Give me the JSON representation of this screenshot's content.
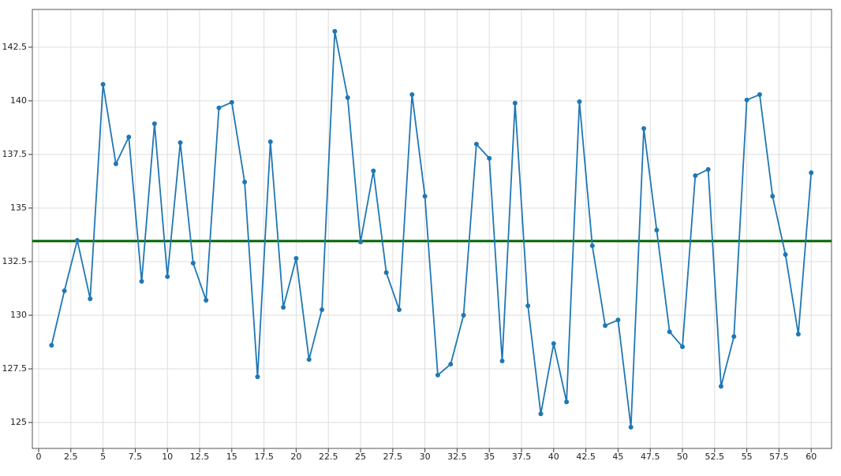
{
  "chart_data": {
    "type": "line",
    "x": [
      1,
      2,
      3,
      4,
      5,
      6,
      7,
      8,
      9,
      10,
      11,
      12,
      13,
      14,
      15,
      16,
      17,
      18,
      19,
      20,
      21,
      22,
      23,
      24,
      25,
      26,
      27,
      28,
      29,
      30,
      31,
      32,
      33,
      34,
      35,
      36,
      37,
      38,
      39,
      40,
      41,
      42,
      43,
      44,
      45,
      46,
      47,
      48,
      49,
      50,
      51,
      52,
      53,
      54,
      55,
      56,
      57,
      58,
      59,
      60
    ],
    "values": [
      128.6,
      131.14,
      133.49,
      130.77,
      140.77,
      137.06,
      138.31,
      131.58,
      138.93,
      131.8,
      138.05,
      132.43,
      130.7,
      139.67,
      139.93,
      136.21,
      127.13,
      138.09,
      130.37,
      132.65,
      127.94,
      130.26,
      143.24,
      140.15,
      133.42,
      136.73,
      131.99,
      130.26,
      140.29,
      135.55,
      127.21,
      127.72,
      130.0,
      137.98,
      137.32,
      127.87,
      139.89,
      130.44,
      125.4,
      128.68,
      125.96,
      139.96,
      133.24,
      129.52,
      129.78,
      124.78,
      138.71,
      133.97,
      129.23,
      128.53,
      136.51,
      136.8,
      126.69,
      129.01,
      140.04,
      140.29,
      135.55,
      132.83,
      129.12,
      136.65
    ],
    "color": "#1f77b4",
    "hline": {
      "value": 133.46,
      "color": "#006400"
    },
    "xlim": [
      -0.49,
      61.58
    ],
    "ylim": [
      123.79,
      144.26
    ],
    "xticks": [
      0,
      2.5,
      5,
      7.5,
      10,
      12.5,
      15,
      17.5,
      20,
      22.5,
      25,
      27.5,
      30,
      32.5,
      35,
      37.5,
      40,
      42.5,
      45,
      47.5,
      50,
      52.5,
      55,
      57.5,
      60
    ],
    "yticks": [
      125,
      127.5,
      130,
      132.5,
      135,
      137.5,
      140,
      142.5
    ],
    "grid": true
  }
}
